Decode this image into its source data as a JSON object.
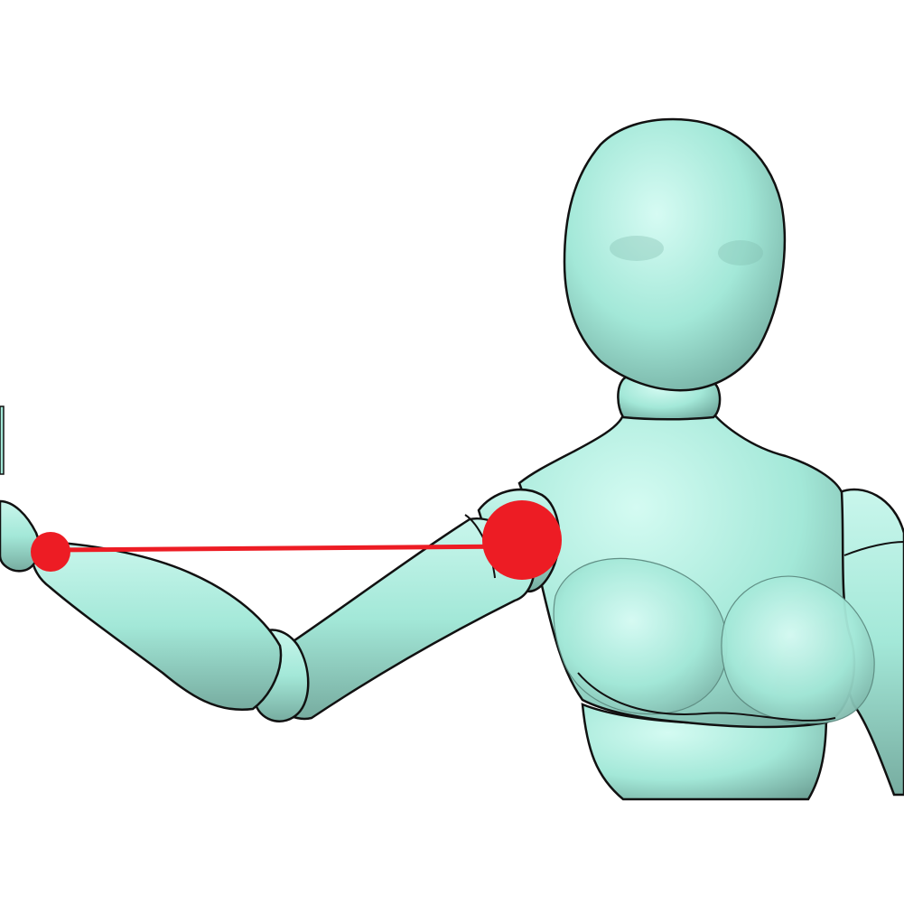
{
  "viewport": {
    "background": "#ffffff"
  },
  "figure": {
    "kind": "mannequin-figure",
    "skin_color": "#a3e8d8",
    "skin_highlight": "#d4fbf2",
    "skin_shadow": "#6fa89c",
    "outline_color": "#111111"
  },
  "ik_overlay": {
    "color": "#ed1c24",
    "handles": [
      {
        "name": "shoulder-joint-handle"
      },
      {
        "name": "wrist-joint-handle"
      }
    ],
    "connector": "arm-chain-line"
  }
}
